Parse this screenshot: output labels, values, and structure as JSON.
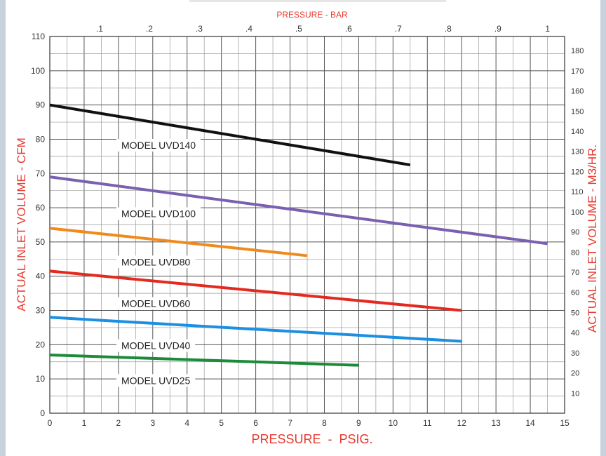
{
  "chart_data": {
    "type": "line",
    "xlabel": "PRESSURE  -  PSIG.",
    "x2label": "PRESSURE - BAR",
    "ylabel": "ACTUAL INLET VOLUME - CFM",
    "y2label": "ACTUAL INLET VOLUME - M3/HR.",
    "xlim": [
      0,
      15
    ],
    "ylim": [
      0,
      110
    ],
    "y2lim": [
      0,
      187
    ],
    "grid": true,
    "x_ticks": [
      "0",
      "1",
      "2",
      "3",
      "4",
      "5",
      "6",
      "7",
      "8",
      "9",
      "10",
      "11",
      "12",
      "13",
      "14",
      "15"
    ],
    "y_ticks": [
      "0",
      "10",
      "20",
      "30",
      "40",
      "50",
      "60",
      "70",
      "80",
      "90",
      "100",
      "110"
    ],
    "x2_ticks": [
      {
        "value": 0.1,
        "label": ".1"
      },
      {
        "value": 0.2,
        "label": ".2"
      },
      {
        "value": 0.3,
        "label": ".3"
      },
      {
        "value": 0.4,
        "label": ".4"
      },
      {
        "value": 0.5,
        "label": ".5"
      },
      {
        "value": 0.6,
        "label": ".6"
      },
      {
        "value": 0.7,
        "label": ".7"
      },
      {
        "value": 0.8,
        "label": ".8"
      },
      {
        "value": 0.9,
        "label": ".9"
      },
      {
        "value": 1.0,
        "label": "1"
      }
    ],
    "y2_ticks": [
      "10",
      "20",
      "30",
      "40",
      "50",
      "60",
      "70",
      "80",
      "90",
      "100",
      "110",
      "120",
      "130",
      "140",
      "150",
      "160",
      "170",
      "180"
    ],
    "series": [
      {
        "name": "MODEL UVD140",
        "color": "#111111",
        "x": [
          0,
          10.5
        ],
        "y": [
          90,
          72.5
        ]
      },
      {
        "name": "MODEL UVD100",
        "color": "#7a60b0",
        "x": [
          0,
          14.5
        ],
        "y": [
          69,
          49.5
        ]
      },
      {
        "name": "MODEL UVD80",
        "color": "#f08a1c",
        "x": [
          0,
          7.5
        ],
        "y": [
          54,
          46
        ]
      },
      {
        "name": "MODEL UVD60",
        "color": "#e32a1f",
        "x": [
          0,
          12
        ],
        "y": [
          41.5,
          30
        ]
      },
      {
        "name": "MODEL UVD40",
        "color": "#1c8fe0",
        "x": [
          0,
          12
        ],
        "y": [
          28,
          21
        ]
      },
      {
        "name": "MODEL UVD25",
        "color": "#1c8a3a",
        "x": [
          0,
          9
        ],
        "y": [
          17,
          14
        ]
      }
    ]
  }
}
